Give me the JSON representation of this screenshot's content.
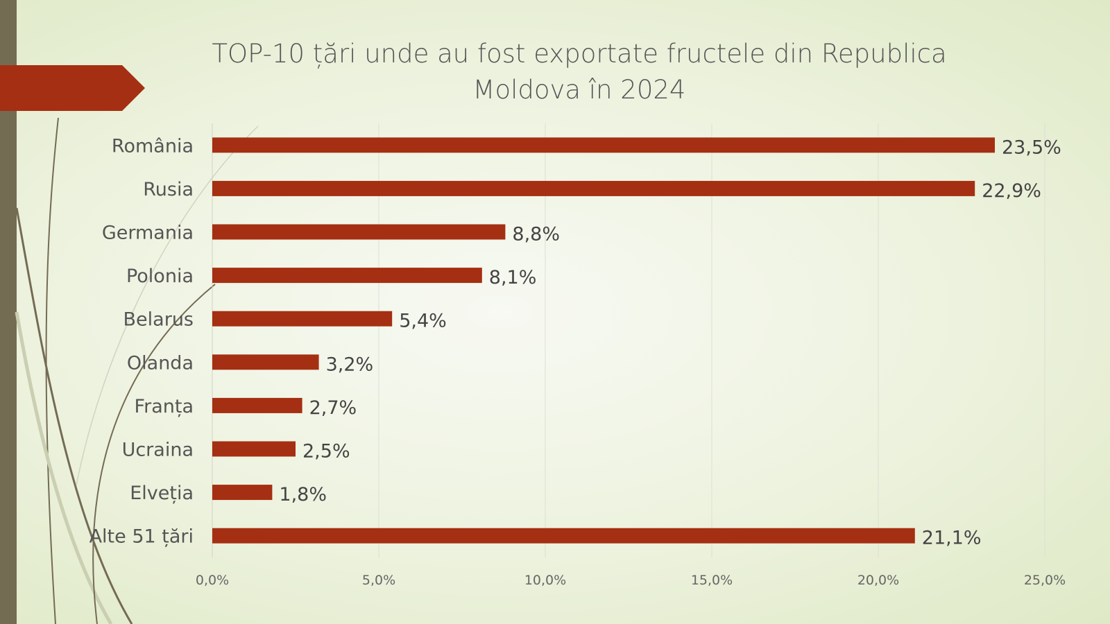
{
  "chart_data": {
    "type": "bar",
    "orientation": "horizontal",
    "title": "TOP-10 țări unde au fost exportate fructele din Republica Moldova în 2024",
    "title_lines": [
      "TOP-10 țări unde au fost exportate fructele din Republica",
      "Moldova în 2024"
    ],
    "categories": [
      "România",
      "Rusia",
      "Germania",
      "Polonia",
      "Belarus",
      "Olanda",
      "Franța",
      "Ucraina",
      "Elveția",
      "Alte 51 țări"
    ],
    "values": [
      23.5,
      22.9,
      8.8,
      8.1,
      5.4,
      3.2,
      2.7,
      2.5,
      1.8,
      21.1
    ],
    "data_labels": [
      "23,5%",
      "22,9%",
      "8,8%",
      "8,1%",
      "5,4%",
      "3,2%",
      "2,7%",
      "2,5%",
      "1,8%",
      "21,1%"
    ],
    "xlim": [
      0,
      25
    ],
    "xticks": [
      0,
      5,
      10,
      15,
      20,
      25
    ],
    "xtick_labels": [
      "0,0%",
      "5,0%",
      "10,0%",
      "15,0%",
      "20,0%",
      "25,0%"
    ],
    "grid": true,
    "bar_color": "#a52f12",
    "xlabel": "",
    "ylabel": ""
  },
  "colors": {
    "accent": "#a52f12",
    "strip": "#746b53"
  }
}
